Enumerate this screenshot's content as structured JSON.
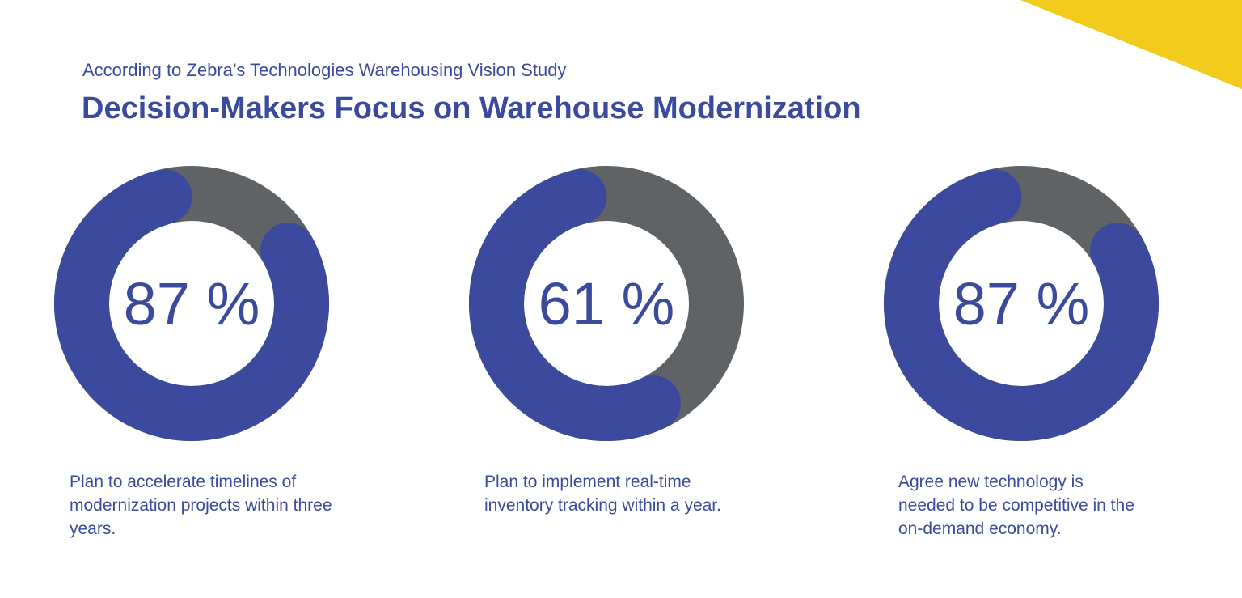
{
  "header": {
    "subtitle": "According to Zebra’s Technologies Warehousing Vision Study",
    "title": "Decision-Makers Focus on Warehouse Modernization"
  },
  "colors": {
    "accent": "#3b4a9c",
    "remainder": "#606366",
    "corner": "#f2cb1d",
    "background": "#ffffff"
  },
  "chart_data": [
    {
      "type": "pie",
      "variant": "donut",
      "value": 87,
      "label": "87 %",
      "caption": "Plan to accelerate timelines of modernization projects within three years."
    },
    {
      "type": "pie",
      "variant": "donut",
      "value": 61,
      "label": "61 %",
      "caption": "Plan to implement real-time inventory tracking within a year."
    },
    {
      "type": "pie",
      "variant": "donut",
      "value": 87,
      "label": "87 %",
      "caption": "Agree new technology is needed to be competitive in the on-demand economy."
    }
  ]
}
